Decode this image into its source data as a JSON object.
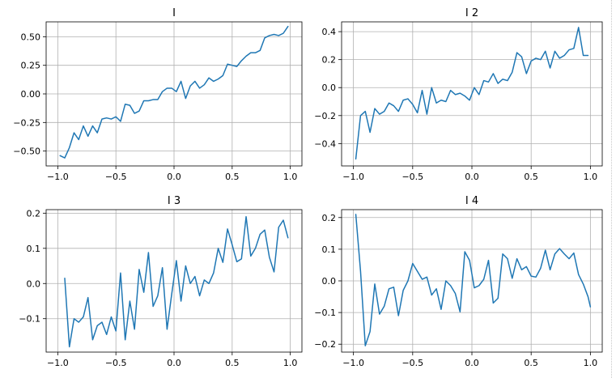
{
  "chart_data": [
    {
      "type": "line",
      "title": "I",
      "xlim": [
        -1.1,
        1.1
      ],
      "ylim": [
        -0.63,
        0.63
      ],
      "xticks": [
        -1.0,
        -0.5,
        0.0,
        0.5,
        1.0
      ],
      "xtick_labels": [
        "−1.0",
        "−0.5",
        "0.0",
        "0.5",
        "1.0"
      ],
      "yticks": [
        -0.5,
        -0.25,
        0.0,
        0.25,
        0.5
      ],
      "ytick_labels": [
        "−0.50",
        "−0.25",
        "0.00",
        "0.25",
        "0.50"
      ],
      "grid": true,
      "color": "#1f77b4",
      "x": [
        -0.98,
        -0.94,
        -0.9,
        -0.86,
        -0.82,
        -0.78,
        -0.74,
        -0.7,
        -0.66,
        -0.62,
        -0.58,
        -0.54,
        -0.5,
        -0.46,
        -0.42,
        -0.38,
        -0.34,
        -0.3,
        -0.26,
        -0.22,
        -0.18,
        -0.14,
        -0.1,
        -0.06,
        -0.02,
        0.02,
        0.06,
        0.1,
        0.14,
        0.18,
        0.22,
        0.26,
        0.3,
        0.34,
        0.38,
        0.42,
        0.46,
        0.5,
        0.54,
        0.58,
        0.62,
        0.66,
        0.7,
        0.74,
        0.78,
        0.82,
        0.86,
        0.9,
        0.94,
        0.98
      ],
      "y": [
        -0.54,
        -0.56,
        -0.47,
        -0.34,
        -0.4,
        -0.28,
        -0.37,
        -0.28,
        -0.34,
        -0.22,
        -0.21,
        -0.22,
        -0.2,
        -0.24,
        -0.09,
        -0.1,
        -0.17,
        -0.15,
        -0.06,
        -0.06,
        -0.05,
        -0.05,
        0.02,
        0.05,
        0.05,
        0.02,
        0.11,
        -0.04,
        0.07,
        0.11,
        0.05,
        0.08,
        0.14,
        0.11,
        0.13,
        0.16,
        0.26,
        0.25,
        0.24,
        0.29,
        0.33,
        0.36,
        0.36,
        0.38,
        0.49,
        0.51,
        0.52,
        0.51,
        0.53,
        0.59
      ]
    },
    {
      "type": "line",
      "title": "I 2",
      "xlim": [
        -1.1,
        1.1
      ],
      "ylim": [
        -0.56,
        0.47
      ],
      "xticks": [
        -1.0,
        -0.5,
        0.0,
        0.5,
        1.0
      ],
      "xtick_labels": [
        "−1.0",
        "−0.5",
        "0.0",
        "0.5",
        "1.0"
      ],
      "yticks": [
        -0.4,
        -0.2,
        0.0,
        0.2,
        0.4
      ],
      "ytick_labels": [
        "−0.4",
        "−0.2",
        "0.0",
        "0.2",
        "0.4"
      ],
      "grid": true,
      "color": "#1f77b4",
      "x": [
        -0.98,
        -0.94,
        -0.9,
        -0.86,
        -0.82,
        -0.78,
        -0.74,
        -0.7,
        -0.66,
        -0.62,
        -0.58,
        -0.54,
        -0.5,
        -0.46,
        -0.42,
        -0.38,
        -0.34,
        -0.3,
        -0.26,
        -0.22,
        -0.18,
        -0.14,
        -0.1,
        -0.06,
        -0.02,
        0.02,
        0.06,
        0.1,
        0.14,
        0.18,
        0.22,
        0.26,
        0.3,
        0.34,
        0.38,
        0.42,
        0.46,
        0.5,
        0.54,
        0.58,
        0.62,
        0.66,
        0.7,
        0.74,
        0.78,
        0.82,
        0.86,
        0.9,
        0.94,
        0.98
      ],
      "y": [
        -0.51,
        -0.2,
        -0.17,
        -0.32,
        -0.15,
        -0.19,
        -0.17,
        -0.11,
        -0.13,
        -0.17,
        -0.09,
        -0.08,
        -0.12,
        -0.18,
        -0.02,
        -0.19,
        0.0,
        -0.11,
        -0.09,
        -0.1,
        -0.02,
        -0.05,
        -0.04,
        -0.06,
        -0.09,
        0.0,
        -0.05,
        0.05,
        0.04,
        0.1,
        0.03,
        0.06,
        0.05,
        0.11,
        0.25,
        0.22,
        0.1,
        0.19,
        0.21,
        0.2,
        0.26,
        0.14,
        0.26,
        0.21,
        0.23,
        0.27,
        0.28,
        0.43,
        0.23,
        0.23
      ]
    },
    {
      "type": "line",
      "title": "I 3",
      "xlim": [
        -1.1,
        1.1
      ],
      "ylim": [
        -0.195,
        0.21
      ],
      "xticks": [
        -1.0,
        -0.5,
        0.0,
        0.5,
        1.0
      ],
      "xtick_labels": [
        "−1.0",
        "−0.5",
        "0.0",
        "0.5",
        "1.0"
      ],
      "yticks": [
        -0.1,
        0.0,
        0.1,
        0.2
      ],
      "ytick_labels": [
        "−0.1",
        "0.0",
        "0.1",
        "0.2"
      ],
      "grid": true,
      "color": "#1f77b4",
      "x": [
        -0.94,
        -0.9,
        -0.86,
        -0.82,
        -0.78,
        -0.74,
        -0.7,
        -0.66,
        -0.62,
        -0.58,
        -0.54,
        -0.5,
        -0.46,
        -0.42,
        -0.38,
        -0.34,
        -0.3,
        -0.26,
        -0.22,
        -0.18,
        -0.14,
        -0.1,
        -0.06,
        -0.02,
        0.02,
        0.06,
        0.1,
        0.14,
        0.18,
        0.22,
        0.26,
        0.3,
        0.34,
        0.38,
        0.42,
        0.46,
        0.5,
        0.54,
        0.58,
        0.62,
        0.66,
        0.7,
        0.74,
        0.78,
        0.82,
        0.86,
        0.9,
        0.94,
        0.98
      ],
      "y": [
        0.015,
        -0.18,
        -0.1,
        -0.11,
        -0.095,
        -0.04,
        -0.16,
        -0.12,
        -0.11,
        -0.145,
        -0.095,
        -0.135,
        0.03,
        -0.16,
        -0.05,
        -0.13,
        0.04,
        -0.025,
        0.088,
        -0.065,
        -0.035,
        0.045,
        -0.13,
        -0.03,
        0.065,
        -0.05,
        0.05,
        0.0,
        0.02,
        -0.035,
        0.01,
        0.0,
        0.03,
        0.1,
        0.06,
        0.155,
        0.11,
        0.062,
        0.07,
        0.19,
        0.078,
        0.1,
        0.14,
        0.152,
        0.075,
        0.033,
        0.16,
        0.18,
        0.13
      ]
    },
    {
      "type": "line",
      "title": "I 4",
      "xlim": [
        -1.1,
        1.1
      ],
      "ylim": [
        -0.225,
        0.225
      ],
      "xticks": [
        -1.0,
        -0.5,
        0.0,
        0.5,
        1.0
      ],
      "xtick_labels": [
        "−1.0",
        "−0.5",
        "0.0",
        "0.5",
        "1.0"
      ],
      "yticks": [
        -0.2,
        -0.1,
        0.0,
        0.1,
        0.2
      ],
      "ytick_labels": [
        "−0.2",
        "−0.1",
        "0.0",
        "0.1",
        "0.2"
      ],
      "grid": true,
      "color": "#1f77b4",
      "x": [
        -0.98,
        -0.94,
        -0.9,
        -0.86,
        -0.82,
        -0.78,
        -0.74,
        -0.7,
        -0.66,
        -0.62,
        -0.58,
        -0.54,
        -0.5,
        -0.46,
        -0.42,
        -0.38,
        -0.34,
        -0.3,
        -0.26,
        -0.22,
        -0.18,
        -0.14,
        -0.1,
        -0.06,
        -0.02,
        0.02,
        0.06,
        0.1,
        0.14,
        0.18,
        0.22,
        0.26,
        0.3,
        0.34,
        0.38,
        0.42,
        0.46,
        0.5,
        0.54,
        0.58,
        0.62,
        0.66,
        0.7,
        0.74,
        0.78,
        0.82,
        0.86,
        0.9,
        0.94,
        0.98,
        1.0
      ],
      "y": [
        0.21,
        0.03,
        -0.205,
        -0.16,
        -0.01,
        -0.105,
        -0.08,
        -0.025,
        -0.02,
        -0.11,
        -0.03,
        0.0,
        0.055,
        0.03,
        0.005,
        0.012,
        -0.045,
        -0.025,
        -0.09,
        0.0,
        -0.015,
        -0.04,
        -0.098,
        0.092,
        0.065,
        -0.022,
        -0.015,
        0.005,
        0.065,
        -0.07,
        -0.055,
        0.085,
        0.07,
        0.008,
        0.07,
        0.035,
        0.045,
        0.015,
        0.012,
        0.04,
        0.097,
        0.035,
        0.085,
        0.102,
        0.085,
        0.07,
        0.088,
        0.02,
        -0.01,
        -0.05,
        -0.082
      ]
    }
  ]
}
